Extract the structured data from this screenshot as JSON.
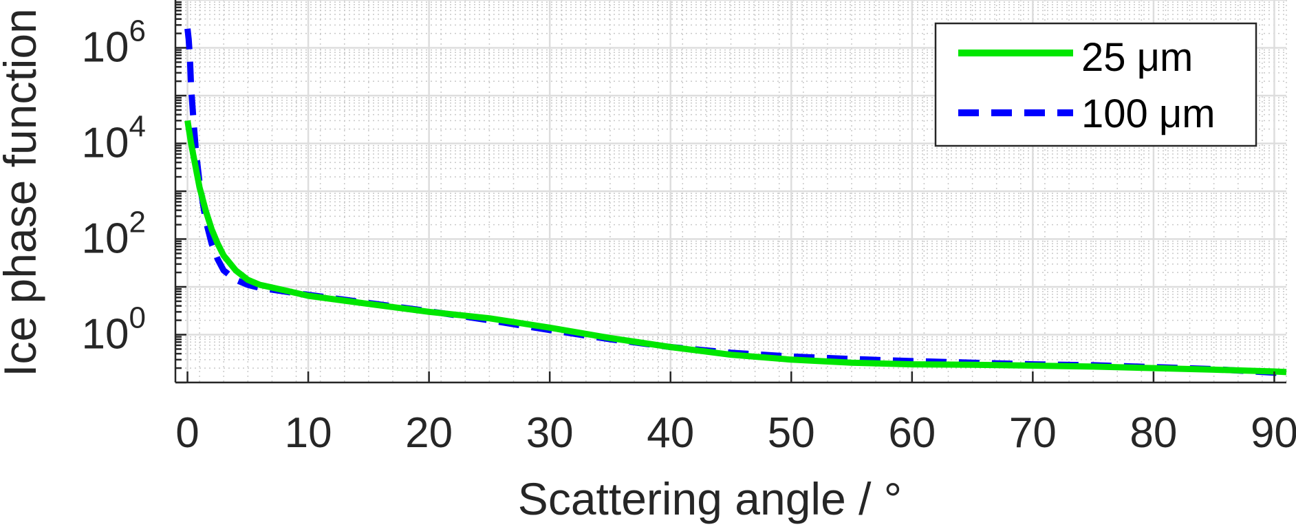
{
  "chart_data": {
    "type": "line",
    "xlabel": "Scattering angle / °",
    "ylabel": "Ice phase function",
    "xlim": [
      -1,
      91
    ],
    "ylim": [
      0.1,
      10000000
    ],
    "yscale": "log",
    "x_ticks": [
      0,
      10,
      20,
      30,
      40,
      50,
      60,
      70,
      80,
      90
    ],
    "x_tick_labels": [
      "0",
      "10",
      "20",
      "30",
      "40",
      "50",
      "60",
      "70",
      "80",
      "90"
    ],
    "y_ticks": [
      1,
      100,
      10000,
      1000000
    ],
    "y_tick_labels": [
      {
        "base": "10",
        "exp": "0"
      },
      {
        "base": "10",
        "exp": "2"
      },
      {
        "base": "10",
        "exp": "4"
      },
      {
        "base": "10",
        "exp": "6"
      }
    ],
    "grid": true,
    "minor_grid": true,
    "legend_position": "top-right",
    "series": [
      {
        "name": "25 μm",
        "color": "#00e600",
        "line_style": "solid",
        "x": [
          0.0,
          0.3,
          0.6,
          1.0,
          1.5,
          2.0,
          2.5,
          3.0,
          4.0,
          5.0,
          6.0,
          8.0,
          10.0,
          15.0,
          20.0,
          25.0,
          30.0,
          35.0,
          40.0,
          45.0,
          50.0,
          55.0,
          60.0,
          65.0,
          70.0,
          75.0,
          80.0,
          85.0,
          90.0,
          91.0
        ],
        "y": [
          30000,
          10000,
          4000,
          1200,
          400,
          160,
          80,
          45,
          22,
          14,
          11,
          8.5,
          6.5,
          4.4,
          3.0,
          2.2,
          1.4,
          0.85,
          0.55,
          0.38,
          0.3,
          0.26,
          0.24,
          0.235,
          0.225,
          0.215,
          0.2,
          0.185,
          0.17,
          0.165
        ]
      },
      {
        "name": "100 μm",
        "color": "#0000ff",
        "line_style": "dashed",
        "x": [
          0.0,
          0.1,
          0.2,
          0.3,
          0.5,
          0.7,
          1.0,
          1.5,
          2.0,
          2.5,
          3.0,
          4.0,
          5.0,
          6.0,
          8.0,
          10.0,
          15.0,
          20.0,
          25.0,
          30.0,
          35.0,
          40.0,
          45.0,
          50.0,
          55.0,
          60.0,
          65.0,
          70.0,
          75.0,
          80.0,
          85.0,
          90.0,
          91.0
        ],
        "y": [
          2500000,
          1500000,
          600000,
          150000,
          30000,
          7000,
          1500,
          250,
          80,
          38,
          22,
          14,
          11,
          9.5,
          8.0,
          6.8,
          4.6,
          3.1,
          2.0,
          1.25,
          0.8,
          0.55,
          0.42,
          0.35,
          0.31,
          0.28,
          0.26,
          0.24,
          0.23,
          0.21,
          0.19,
          0.16,
          0.155
        ]
      }
    ]
  }
}
